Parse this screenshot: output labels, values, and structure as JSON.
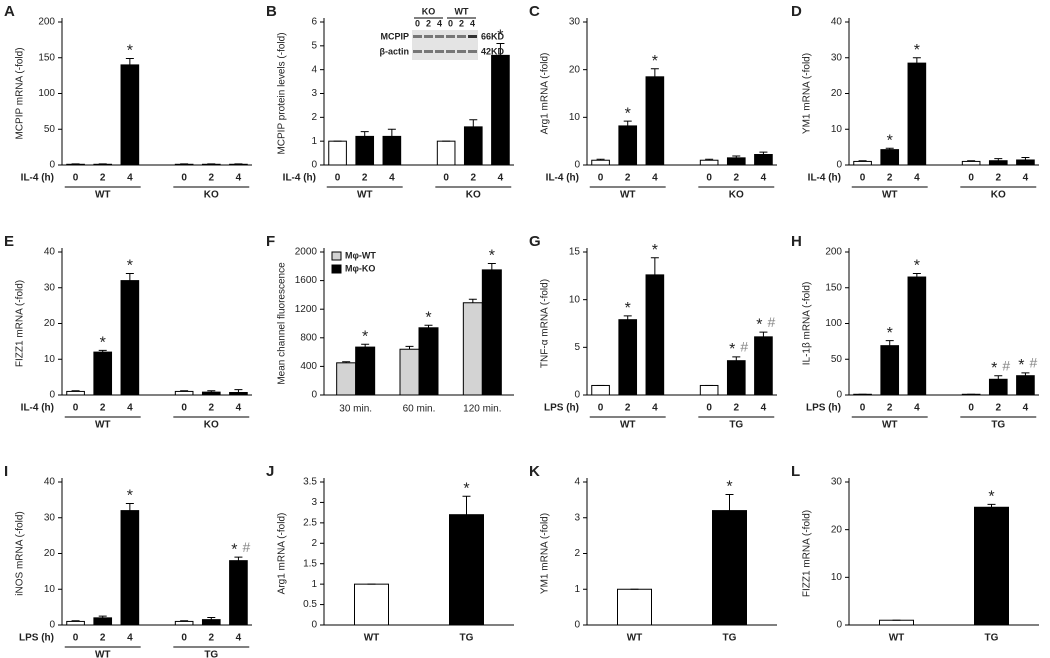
{
  "chart_data": [
    {
      "type": "bar",
      "panel": "A",
      "ylabel": "MCPIP mRNA (-fold)",
      "xlabel": "IL-4 (h)",
      "categories": [
        "0",
        "2",
        "4",
        "0",
        "2",
        "4"
      ],
      "groups": [
        "WT",
        "KO"
      ],
      "values": [
        1,
        1,
        140,
        1,
        1,
        1
      ],
      "errors": [
        0.5,
        0.5,
        9,
        0.5,
        0.5,
        0.5
      ],
      "colors": [
        "#ffffff",
        "#000000",
        "#000000",
        "#ffffff",
        "#000000",
        "#000000"
      ],
      "stars": [
        null,
        null,
        "*",
        null,
        null,
        null
      ],
      "ylim": [
        0,
        200
      ],
      "yticks": [
        0,
        50,
        100,
        150,
        200
      ]
    },
    {
      "type": "bar",
      "panel": "B",
      "ylabel": "MCPIP protein levels (-fold)",
      "xlabel": "IL-4 (h)",
      "categories": [
        "0",
        "2",
        "4",
        "0",
        "2",
        "4"
      ],
      "groups": [
        "WT",
        "KO"
      ],
      "values": [
        1,
        1.2,
        1.2,
        1,
        1.6,
        4.6
      ],
      "errors": [
        0,
        0.2,
        0.3,
        0,
        0.3,
        0.5
      ],
      "colors": [
        "#ffffff",
        "#000000",
        "#000000",
        "#ffffff",
        "#000000",
        "#000000"
      ],
      "stars": [
        null,
        null,
        null,
        null,
        null,
        "*"
      ],
      "ylim": [
        0,
        6
      ],
      "yticks": [
        0,
        1,
        2,
        3,
        4,
        5,
        6
      ],
      "inset": {
        "groups": [
          "KO",
          "WT"
        ],
        "lanes": [
          "0",
          "2",
          "4",
          "0",
          "2",
          "4"
        ],
        "rows": [
          "MCPIP",
          "β-actin"
        ],
        "sizes": [
          "66KD",
          "42KD"
        ]
      }
    },
    {
      "type": "bar",
      "panel": "C",
      "ylabel": "Arg1 mRNA (-fold)",
      "xlabel": "IL-4 (h)",
      "categories": [
        "0",
        "2",
        "4",
        "0",
        "2",
        "4"
      ],
      "groups": [
        "WT",
        "KO"
      ],
      "values": [
        1,
        8.2,
        18.5,
        1,
        1.5,
        2.2
      ],
      "errors": [
        0.2,
        1,
        1.7,
        0.2,
        0.4,
        0.5
      ],
      "colors": [
        "#ffffff",
        "#000000",
        "#000000",
        "#ffffff",
        "#000000",
        "#000000"
      ],
      "stars": [
        null,
        "*",
        "*",
        null,
        null,
        null
      ],
      "ylim": [
        0,
        30
      ],
      "yticks": [
        0,
        10,
        20,
        30
      ]
    },
    {
      "type": "bar",
      "panel": "D",
      "ylabel": "YM1 mRNA (-fold)",
      "xlabel": "IL-4 (h)",
      "categories": [
        "0",
        "2",
        "4",
        "0",
        "2",
        "4"
      ],
      "groups": [
        "WT",
        "KO"
      ],
      "values": [
        1,
        4.3,
        28.5,
        1,
        1.2,
        1.4
      ],
      "errors": [
        0.2,
        0.4,
        1.5,
        0.2,
        0.6,
        0.7
      ],
      "colors": [
        "#ffffff",
        "#000000",
        "#000000",
        "#ffffff",
        "#000000",
        "#000000"
      ],
      "stars": [
        null,
        "*",
        "*",
        null,
        null,
        null
      ],
      "ylim": [
        0,
        40
      ],
      "yticks": [
        0,
        10,
        20,
        30,
        40
      ]
    },
    {
      "type": "bar",
      "panel": "E",
      "ylabel": "FIZZ1 mRNA (-fold)",
      "xlabel": "IL-4 (h)",
      "categories": [
        "0",
        "2",
        "4",
        "0",
        "2",
        "4"
      ],
      "groups": [
        "WT",
        "KO"
      ],
      "values": [
        1,
        12,
        32,
        1,
        0.8,
        0.7
      ],
      "errors": [
        0.2,
        0.5,
        2,
        0.2,
        0.4,
        0.8
      ],
      "colors": [
        "#ffffff",
        "#000000",
        "#000000",
        "#ffffff",
        "#000000",
        "#000000"
      ],
      "stars": [
        null,
        "*",
        "*",
        null,
        null,
        null
      ],
      "ylim": [
        0,
        40
      ],
      "yticks": [
        0,
        10,
        20,
        30,
        40
      ]
    },
    {
      "type": "grouped-bar",
      "panel": "F",
      "ylabel": "Mean channel fluorescence",
      "categories": [
        "30 min.",
        "60 min.",
        "120 min."
      ],
      "series": [
        {
          "name": "Mφ-WT",
          "color": "#d3d3d3",
          "values": [
            450,
            640,
            1290
          ],
          "errors": [
            15,
            40,
            50
          ]
        },
        {
          "name": "Mφ-KO",
          "color": "#000000",
          "values": [
            670,
            940,
            1750
          ],
          "errors": [
            40,
            35,
            90
          ],
          "stars": [
            "*",
            "*",
            "*"
          ]
        }
      ],
      "legend": "upper left",
      "ylim": [
        0,
        2000
      ],
      "yticks": [
        0,
        400,
        800,
        1200,
        1600,
        2000
      ]
    },
    {
      "type": "bar",
      "panel": "G",
      "ylabel": "TNF-α mRNA (-fold)",
      "xlabel": "LPS (h)",
      "categories": [
        "0",
        "2",
        "4",
        "0",
        "2",
        "4"
      ],
      "groups": [
        "WT",
        "TG"
      ],
      "values": [
        1,
        7.9,
        12.6,
        1,
        3.6,
        6.1
      ],
      "errors": [
        0,
        0.4,
        1.8,
        0,
        0.4,
        0.5
      ],
      "colors": [
        "#ffffff",
        "#000000",
        "#000000",
        "#ffffff",
        "#000000",
        "#000000"
      ],
      "stars": [
        null,
        "*",
        "*",
        null,
        "*",
        "*"
      ],
      "hashes": [
        null,
        null,
        null,
        null,
        "#",
        "#"
      ],
      "ylim": [
        0,
        15
      ],
      "yticks": [
        0,
        5,
        10,
        15
      ]
    },
    {
      "type": "bar",
      "panel": "H",
      "ylabel": "IL-1β mRNA (-fold)",
      "xlabel": "LPS (h)",
      "categories": [
        "0",
        "2",
        "4",
        "0",
        "2",
        "4"
      ],
      "groups": [
        "WT",
        "TG"
      ],
      "values": [
        1,
        69,
        165,
        1,
        22,
        27
      ],
      "errors": [
        0,
        7,
        5,
        0,
        5,
        4
      ],
      "colors": [
        "#ffffff",
        "#000000",
        "#000000",
        "#ffffff",
        "#000000",
        "#000000"
      ],
      "stars": [
        null,
        "*",
        "*",
        null,
        "*",
        "*"
      ],
      "hashes": [
        null,
        null,
        null,
        null,
        "#",
        "#"
      ],
      "ylim": [
        0,
        200
      ],
      "yticks": [
        0,
        50,
        100,
        150,
        200
      ]
    },
    {
      "type": "bar",
      "panel": "I",
      "ylabel": "iNOS mRNA (-fold)",
      "xlabel": "LPS (h)",
      "categories": [
        "0",
        "2",
        "4",
        "0",
        "2",
        "4"
      ],
      "groups": [
        "WT",
        "TG"
      ],
      "values": [
        1,
        2,
        32,
        1,
        1.5,
        18
      ],
      "errors": [
        0.2,
        0.5,
        2,
        0.2,
        0.6,
        1
      ],
      "colors": [
        "#ffffff",
        "#000000",
        "#000000",
        "#ffffff",
        "#000000",
        "#000000"
      ],
      "stars": [
        null,
        null,
        "*",
        null,
        null,
        "*"
      ],
      "hashes": [
        null,
        null,
        null,
        null,
        null,
        "#"
      ],
      "ylim": [
        0,
        40
      ],
      "yticks": [
        0,
        10,
        20,
        30,
        40
      ]
    },
    {
      "type": "bar",
      "panel": "J",
      "ylabel": "Arg1 mRNA (-fold)",
      "categories": [
        "WT",
        "TG"
      ],
      "values": [
        1,
        2.7
      ],
      "errors": [
        0,
        0.45
      ],
      "colors": [
        "#ffffff",
        "#000000"
      ],
      "stars": [
        null,
        "*"
      ],
      "ylim": [
        0,
        3.5
      ],
      "yticks": [
        0,
        0.5,
        1,
        1.5,
        2,
        2.5,
        3,
        3.5
      ]
    },
    {
      "type": "bar",
      "panel": "K",
      "ylabel": "YM1 mRNA (-fold)",
      "categories": [
        "WT",
        "TG"
      ],
      "values": [
        1,
        3.2
      ],
      "errors": [
        0,
        0.45
      ],
      "colors": [
        "#ffffff",
        "#000000"
      ],
      "stars": [
        null,
        "*"
      ],
      "ylim": [
        0,
        4
      ],
      "yticks": [
        0,
        1,
        2,
        3,
        4
      ]
    },
    {
      "type": "bar",
      "panel": "L",
      "ylabel": "FIZZ1 mRNA (-fold)",
      "categories": [
        "WT",
        "TG"
      ],
      "values": [
        1,
        24.7
      ],
      "errors": [
        0,
        0.6
      ],
      "colors": [
        "#ffffff",
        "#000000"
      ],
      "stars": [
        null,
        "*"
      ],
      "ylim": [
        0,
        30
      ],
      "yticks": [
        0,
        10,
        20,
        30
      ]
    }
  ]
}
